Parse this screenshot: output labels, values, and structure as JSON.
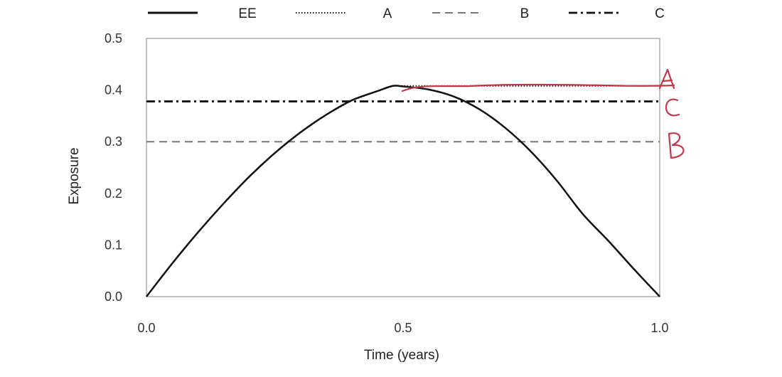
{
  "chart_data": {
    "type": "line",
    "xlabel": "Time (years)",
    "ylabel": "Exposure",
    "xlim": [
      0,
      1
    ],
    "ylim": [
      0,
      0.5
    ],
    "x_ticks": [
      0.0,
      0.5,
      1.0
    ],
    "x_tick_labels": [
      "0.0",
      "0.5",
      "1.0"
    ],
    "y_ticks": [
      0.0,
      0.1,
      0.2,
      0.3,
      0.4,
      0.5
    ],
    "y_tick_labels": [
      "0.0",
      "0.1",
      "0.2",
      "0.3",
      "0.4",
      "0.5"
    ],
    "grid": false,
    "legend_position": "top",
    "series": [
      {
        "name": "EE",
        "style": "solid",
        "color": "#111111",
        "points": [
          [
            0.0,
            0.0
          ],
          [
            0.05,
            0.064
          ],
          [
            0.1,
            0.124
          ],
          [
            0.15,
            0.18
          ],
          [
            0.2,
            0.232
          ],
          [
            0.25,
            0.278
          ],
          [
            0.3,
            0.318
          ],
          [
            0.35,
            0.352
          ],
          [
            0.4,
            0.38
          ],
          [
            0.45,
            0.398
          ],
          [
            0.48,
            0.408
          ],
          [
            0.5,
            0.407
          ],
          [
            0.55,
            0.401
          ],
          [
            0.6,
            0.387
          ],
          [
            0.65,
            0.362
          ],
          [
            0.7,
            0.326
          ],
          [
            0.75,
            0.28
          ],
          [
            0.8,
            0.224
          ],
          [
            0.85,
            0.16
          ],
          [
            0.9,
            0.108
          ],
          [
            0.95,
            0.053
          ],
          [
            1.0,
            0.0
          ]
        ]
      },
      {
        "name": "A",
        "style": "dotted",
        "color": "#111111",
        "points": [
          [
            0.0,
            0.0
          ],
          [
            0.05,
            0.064
          ],
          [
            0.1,
            0.124
          ],
          [
            0.15,
            0.18
          ],
          [
            0.2,
            0.232
          ],
          [
            0.25,
            0.278
          ],
          [
            0.3,
            0.318
          ],
          [
            0.35,
            0.352
          ],
          [
            0.4,
            0.38
          ],
          [
            0.45,
            0.398
          ],
          [
            0.48,
            0.408
          ],
          [
            1.0,
            0.408
          ]
        ]
      },
      {
        "name": "B",
        "style": "dashed",
        "color": "#777777",
        "points": [
          [
            0.0,
            0.3
          ],
          [
            1.0,
            0.3
          ]
        ]
      },
      {
        "name": "C",
        "style": "dashdot",
        "color": "#111111",
        "points": [
          [
            0.0,
            0.378
          ],
          [
            1.0,
            0.378
          ]
        ]
      }
    ],
    "annotations": [
      {
        "text": "A",
        "style": "handwritten",
        "color": "#c0394b",
        "near_series": "A"
      },
      {
        "text": "C",
        "style": "handwritten",
        "color": "#c0394b",
        "near_series": "C"
      },
      {
        "text": "B",
        "style": "handwritten",
        "color": "#c0394b",
        "near_series": "B"
      }
    ]
  }
}
